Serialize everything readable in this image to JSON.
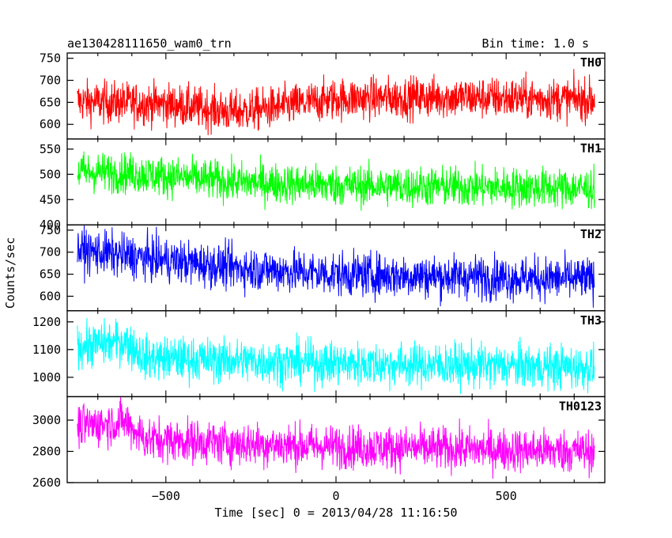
{
  "header": {
    "title": "ae130428111650_wam0_trn",
    "bin_time": "Bin time: 1.0 s"
  },
  "chart_data": {
    "type": "line",
    "title": "ae130428111650_wam0_trn",
    "xlabel": "Time [sec] 0 = 2013/04/28 11:16:50",
    "ylabel": "Counts/sec",
    "xlim": [
      -790,
      790
    ],
    "x_range": [
      -760,
      760
    ],
    "x_ticks": [
      -500,
      0,
      500
    ],
    "x_tick_labels": [
      "−500",
      "0",
      "500"
    ],
    "grid": false,
    "panels": [
      {
        "name": "TH0",
        "color": "#ff0000",
        "ylim": [
          567,
          762
        ],
        "y_ticks": [
          600,
          650,
          700,
          750
        ],
        "y_tick_labels": [
          "600",
          "650",
          "700",
          "750"
        ],
        "trend_x": [
          -760,
          -500,
          -300,
          -200,
          0,
          300,
          760
        ],
        "trend_y": [
          652,
          646,
          628,
          636,
          658,
          662,
          656
        ],
        "noise": 24
      },
      {
        "name": "TH1",
        "color": "#00ff00",
        "ylim": [
          400,
          570
        ],
        "y_ticks": [
          400,
          450,
          500,
          550
        ],
        "y_tick_labels": [
          "400",
          "450",
          "500",
          "550"
        ],
        "trend_x": [
          -760,
          -600,
          -300,
          0,
          760
        ],
        "trend_y": [
          505,
          502,
          485,
          478,
          472
        ],
        "noise": 20
      },
      {
        "name": "TH2",
        "color": "#0000ff",
        "ylim": [
          567,
          762
        ],
        "y_ticks": [
          600,
          650,
          700,
          750
        ],
        "y_tick_labels": [
          "600",
          "650",
          "700",
          "750"
        ],
        "trend_x": [
          -760,
          -600,
          -300,
          0,
          760
        ],
        "trend_y": [
          705,
          690,
          665,
          650,
          638
        ],
        "noise": 25
      },
      {
        "name": "TH3",
        "color": "#00ffff",
        "ylim": [
          930,
          1240
        ],
        "y_ticks": [
          1000,
          1100,
          1200
        ],
        "y_tick_labels": [
          "1000",
          "1100",
          "1200"
        ],
        "trend_x": [
          -760,
          -620,
          -560,
          -300,
          0,
          760
        ],
        "trend_y": [
          1110,
          1130,
          1070,
          1060,
          1050,
          1035
        ],
        "noise": 40
      },
      {
        "name": "TH0123",
        "color": "#ff00ff",
        "ylim": [
          2600,
          3150
        ],
        "y_ticks": [
          2600,
          2800,
          3000
        ],
        "y_tick_labels": [
          "2600",
          "2800",
          "3000"
        ],
        "trend_x": [
          -760,
          -620,
          -560,
          -300,
          0,
          760
        ],
        "trend_y": [
          2960,
          2990,
          2880,
          2850,
          2830,
          2800
        ],
        "noise": 70
      }
    ]
  }
}
